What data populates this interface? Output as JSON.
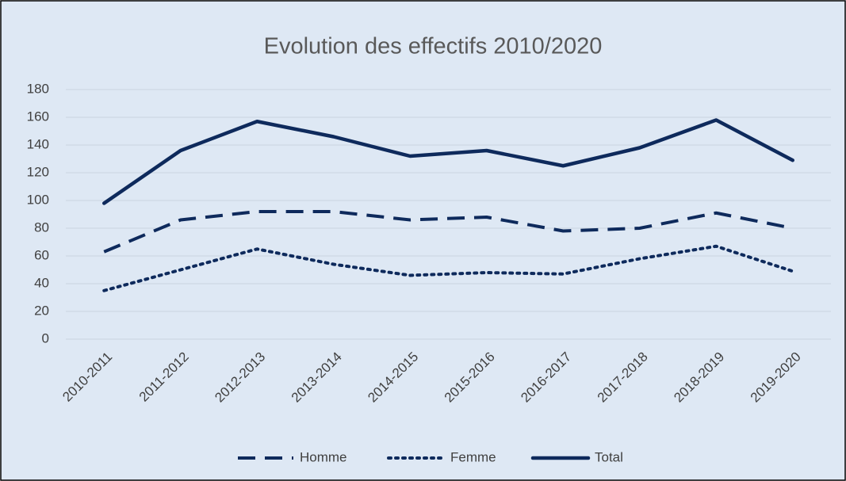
{
  "chart_data": {
    "type": "line",
    "title": "Evolution des effectifs 2010/2020",
    "categories": [
      "2010-2011",
      "2011-2012",
      "2012-2013",
      "2013-2014",
      "2014-2015",
      "2015-2016",
      "2016-2017",
      "2017-2018",
      "2018-2019",
      "2019-2020"
    ],
    "series": [
      {
        "name": "Homme",
        "color": "#0e2a5c",
        "style": "dashed",
        "values": [
          63,
          86,
          92,
          92,
          86,
          88,
          78,
          80,
          91,
          80
        ]
      },
      {
        "name": "Femme",
        "color": "#0e2a5c",
        "style": "dotted",
        "values": [
          35,
          50,
          65,
          54,
          46,
          48,
          47,
          58,
          67,
          49
        ]
      },
      {
        "name": "Total",
        "color": "#0e2a5c",
        "style": "solid",
        "values": [
          98,
          136,
          157,
          146,
          132,
          136,
          125,
          138,
          158,
          129
        ]
      }
    ],
    "ylim": [
      0,
      180
    ],
    "yticks": [
      0,
      20,
      40,
      60,
      80,
      100,
      120,
      140,
      160,
      180
    ],
    "grid": true,
    "legend": "bottom"
  }
}
